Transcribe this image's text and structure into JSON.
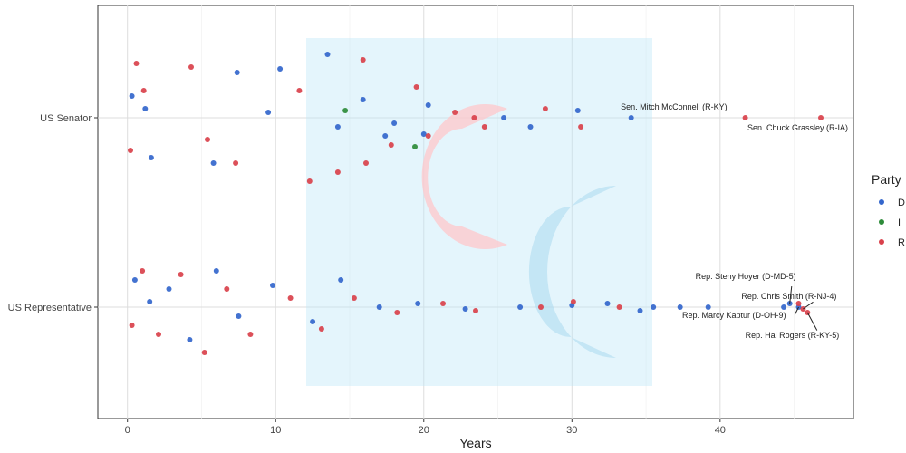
{
  "chart_data": {
    "type": "scatter",
    "title": "",
    "xlabel": "Years",
    "ylabel": "",
    "xlim": [
      -2,
      49
    ],
    "x_ticks": [
      0,
      10,
      20,
      30,
      40
    ],
    "categories": [
      "US Senator",
      "US Representative"
    ],
    "grid": true,
    "legend": {
      "title": "Party",
      "position": "right",
      "entries": [
        {
          "label": "D",
          "color": "#3366cc"
        },
        {
          "label": "I",
          "color": "#2e8b3a"
        },
        {
          "label": "R",
          "color": "#d9414b"
        }
      ]
    },
    "series": [
      {
        "name": "D",
        "color": "#3366cc",
        "points": [
          {
            "category": "US Senator",
            "x": 0.3,
            "jitter": 0.12
          },
          {
            "category": "US Senator",
            "x": 1.2,
            "jitter": 0.05
          },
          {
            "category": "US Senator",
            "x": 1.6,
            "jitter": -0.22
          },
          {
            "category": "US Senator",
            "x": 5.8,
            "jitter": -0.25
          },
          {
            "category": "US Senator",
            "x": 7.4,
            "jitter": 0.25
          },
          {
            "category": "US Senator",
            "x": 9.5,
            "jitter": 0.03
          },
          {
            "category": "US Senator",
            "x": 10.3,
            "jitter": 0.27
          },
          {
            "category": "US Senator",
            "x": 13.5,
            "jitter": 0.35
          },
          {
            "category": "US Senator",
            "x": 14.2,
            "jitter": -0.05
          },
          {
            "category": "US Senator",
            "x": 15.9,
            "jitter": 0.1
          },
          {
            "category": "US Senator",
            "x": 17.4,
            "jitter": -0.1
          },
          {
            "category": "US Senator",
            "x": 18.0,
            "jitter": -0.03
          },
          {
            "category": "US Senator",
            "x": 20.3,
            "jitter": 0.07
          },
          {
            "category": "US Senator",
            "x": 20.0,
            "jitter": -0.09
          },
          {
            "category": "US Senator",
            "x": 25.4,
            "jitter": 0.0
          },
          {
            "category": "US Senator",
            "x": 27.2,
            "jitter": -0.05
          },
          {
            "category": "US Senator",
            "x": 30.4,
            "jitter": 0.04
          },
          {
            "category": "US Senator",
            "x": 34.0,
            "jitter": 0.0
          },
          {
            "category": "US Representative",
            "x": 0.5,
            "jitter": 0.15
          },
          {
            "category": "US Representative",
            "x": 1.5,
            "jitter": 0.03
          },
          {
            "category": "US Representative",
            "x": 2.8,
            "jitter": 0.1
          },
          {
            "category": "US Representative",
            "x": 4.2,
            "jitter": -0.18
          },
          {
            "category": "US Representative",
            "x": 6.0,
            "jitter": 0.2
          },
          {
            "category": "US Representative",
            "x": 7.5,
            "jitter": -0.05
          },
          {
            "category": "US Representative",
            "x": 9.8,
            "jitter": 0.12
          },
          {
            "category": "US Representative",
            "x": 12.5,
            "jitter": -0.08
          },
          {
            "category": "US Representative",
            "x": 14.4,
            "jitter": 0.15
          },
          {
            "category": "US Representative",
            "x": 17.0,
            "jitter": 0.0
          },
          {
            "category": "US Representative",
            "x": 19.6,
            "jitter": 0.02
          },
          {
            "category": "US Representative",
            "x": 22.8,
            "jitter": -0.01
          },
          {
            "category": "US Representative",
            "x": 26.5,
            "jitter": 0.0
          },
          {
            "category": "US Representative",
            "x": 30.0,
            "jitter": 0.01
          },
          {
            "category": "US Representative",
            "x": 32.4,
            "jitter": 0.02
          },
          {
            "category": "US Representative",
            "x": 34.6,
            "jitter": -0.02
          },
          {
            "category": "US Representative",
            "x": 35.5,
            "jitter": 0.0
          },
          {
            "category": "US Representative",
            "x": 37.3,
            "jitter": 0.0
          },
          {
            "category": "US Representative",
            "x": 39.2,
            "jitter": 0.0
          },
          {
            "category": "US Representative",
            "x": 44.3,
            "jitter": 0.0
          },
          {
            "category": "US Representative",
            "x": 44.7,
            "jitter": 0.02
          },
          {
            "category": "US Representative",
            "x": 45.3,
            "jitter": 0.0
          }
        ]
      },
      {
        "name": "I",
        "color": "#2e8b3a",
        "points": [
          {
            "category": "US Senator",
            "x": 14.7,
            "jitter": 0.04
          },
          {
            "category": "US Senator",
            "x": 19.4,
            "jitter": -0.16
          }
        ]
      },
      {
        "name": "R",
        "color": "#d9414b",
        "points": [
          {
            "category": "US Senator",
            "x": 0.2,
            "jitter": -0.18
          },
          {
            "category": "US Senator",
            "x": 0.6,
            "jitter": 0.3
          },
          {
            "category": "US Senator",
            "x": 1.1,
            "jitter": 0.15
          },
          {
            "category": "US Senator",
            "x": 4.3,
            "jitter": 0.28
          },
          {
            "category": "US Senator",
            "x": 5.4,
            "jitter": -0.12
          },
          {
            "category": "US Senator",
            "x": 7.3,
            "jitter": -0.25
          },
          {
            "category": "US Senator",
            "x": 11.6,
            "jitter": 0.15
          },
          {
            "category": "US Senator",
            "x": 12.3,
            "jitter": -0.35
          },
          {
            "category": "US Senator",
            "x": 14.2,
            "jitter": -0.3
          },
          {
            "category": "US Senator",
            "x": 15.9,
            "jitter": 0.32
          },
          {
            "category": "US Senator",
            "x": 16.1,
            "jitter": -0.25
          },
          {
            "category": "US Senator",
            "x": 17.8,
            "jitter": -0.15
          },
          {
            "category": "US Senator",
            "x": 19.5,
            "jitter": 0.17
          },
          {
            "category": "US Senator",
            "x": 20.3,
            "jitter": -0.1
          },
          {
            "category": "US Senator",
            "x": 22.1,
            "jitter": 0.03
          },
          {
            "category": "US Senator",
            "x": 23.4,
            "jitter": 0.0
          },
          {
            "category": "US Senator",
            "x": 24.1,
            "jitter": -0.05
          },
          {
            "category": "US Senator",
            "x": 28.2,
            "jitter": 0.05
          },
          {
            "category": "US Senator",
            "x": 30.6,
            "jitter": -0.05
          },
          {
            "category": "US Senator",
            "x": 41.7,
            "jitter": 0.0
          },
          {
            "category": "US Senator",
            "x": 46.8,
            "jitter": 0.0
          },
          {
            "category": "US Representative",
            "x": 0.3,
            "jitter": -0.1
          },
          {
            "category": "US Representative",
            "x": 1.0,
            "jitter": 0.2
          },
          {
            "category": "US Representative",
            "x": 2.1,
            "jitter": -0.15
          },
          {
            "category": "US Representative",
            "x": 3.6,
            "jitter": 0.18
          },
          {
            "category": "US Representative",
            "x": 5.2,
            "jitter": -0.25
          },
          {
            "category": "US Representative",
            "x": 6.7,
            "jitter": 0.1
          },
          {
            "category": "US Representative",
            "x": 8.3,
            "jitter": -0.15
          },
          {
            "category": "US Representative",
            "x": 11.0,
            "jitter": 0.05
          },
          {
            "category": "US Representative",
            "x": 13.1,
            "jitter": -0.12
          },
          {
            "category": "US Representative",
            "x": 15.3,
            "jitter": 0.05
          },
          {
            "category": "US Representative",
            "x": 18.2,
            "jitter": -0.03
          },
          {
            "category": "US Representative",
            "x": 21.3,
            "jitter": 0.02
          },
          {
            "category": "US Representative",
            "x": 23.5,
            "jitter": -0.02
          },
          {
            "category": "US Representative",
            "x": 27.9,
            "jitter": 0.0
          },
          {
            "category": "US Representative",
            "x": 30.1,
            "jitter": 0.03
          },
          {
            "category": "US Representative",
            "x": 33.2,
            "jitter": 0.0
          },
          {
            "category": "US Representative",
            "x": 45.3,
            "jitter": 0.02
          },
          {
            "category": "US Representative",
            "x": 45.6,
            "jitter": -0.01
          },
          {
            "category": "US Representative",
            "x": 45.9,
            "jitter": -0.03
          }
        ]
      }
    ],
    "annotations": [
      {
        "text": "Sen. Mitch McConnell (R-KY)",
        "category": "US Senator",
        "x": 41.7,
        "jitter": 0.0
      },
      {
        "text": "Sen. Chuck Grassley (R-IA)",
        "category": "US Senator",
        "x": 46.8,
        "jitter": 0.0
      },
      {
        "text": "Rep. Steny Hoyer (D-MD-5)",
        "category": "US Representative",
        "x": 44.7,
        "jitter": 0.02
      },
      {
        "text": "Rep. Chris Smith (R-NJ-4)",
        "category": "US Representative",
        "x": 45.6,
        "jitter": -0.01
      },
      {
        "text": "Rep. Marcy Kaptur (D-OH-9)",
        "category": "US Representative",
        "x": 45.3,
        "jitter": 0.0
      },
      {
        "text": "Rep. Hal Rogers (R-KY-5)",
        "category": "US Representative",
        "x": 45.9,
        "jitter": -0.03
      }
    ]
  }
}
